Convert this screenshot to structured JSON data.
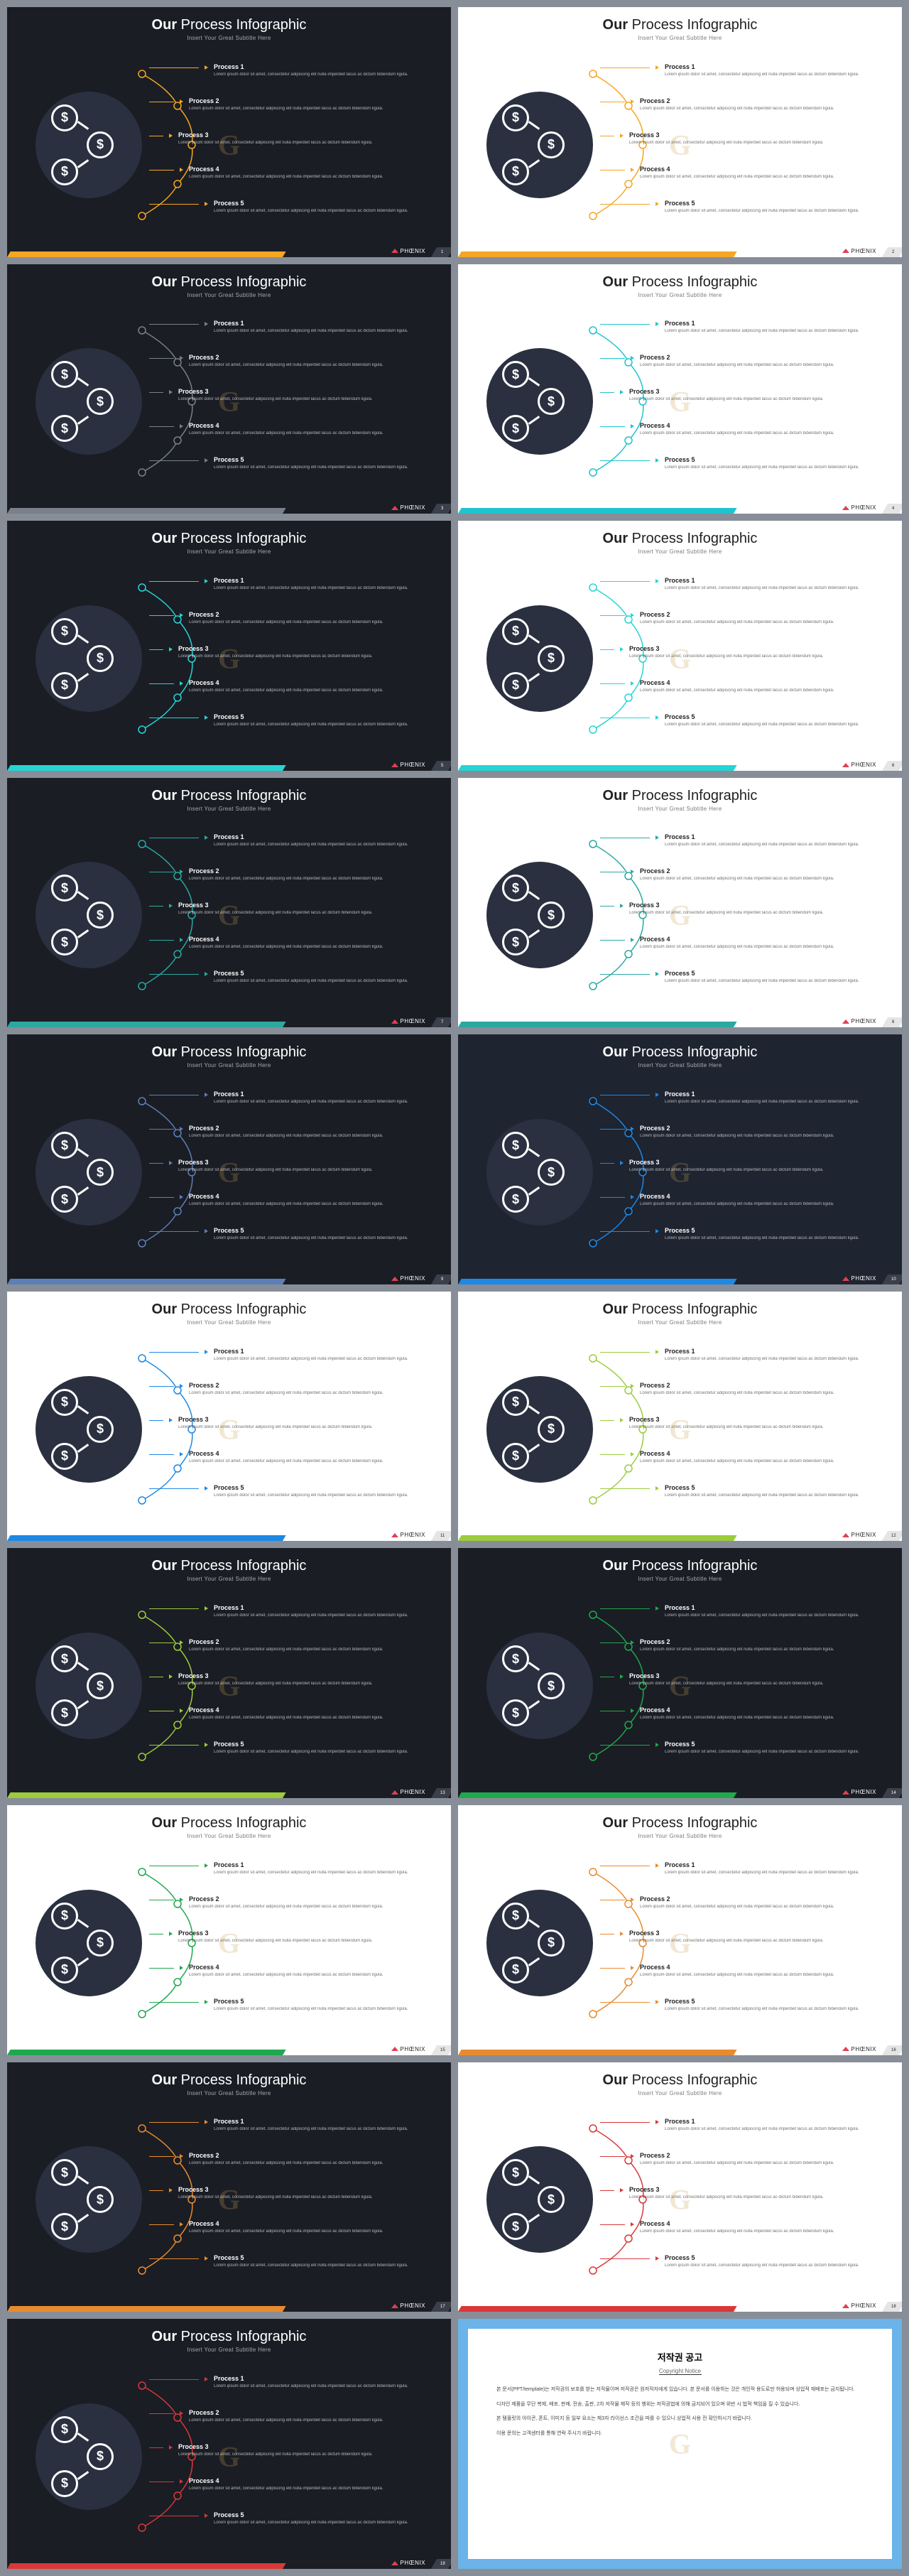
{
  "title_bold": "Our",
  "title_rest": " Process Infographic",
  "subtitle": "Insert Your Great Subtitle Here",
  "brand": "PHŒNIX",
  "processes": [
    {
      "title": "Process 1",
      "desc": "Lorem ipsum dolor sit amet, consectetur adipiscing elit nulla imperdiet lacus ac dictum bibendum ligula."
    },
    {
      "title": "Process 2",
      "desc": "Lorem ipsum dolor sit amet, consectetur adipiscing elit nulla imperdiet lacus ac dictum bibendum ligula."
    },
    {
      "title": "Process 3",
      "desc": "Lorem ipsum dolor sit amet, consectetur adipiscing elit nulla imperdiet lacus ac dictum bibendum ligula."
    },
    {
      "title": "Process 4",
      "desc": "Lorem ipsum dolor sit amet, consectetur adipiscing elit nulla imperdiet lacus ac dictum bibendum ligula."
    },
    {
      "title": "Process 5",
      "desc": "Lorem ipsum dolor sit amet, consectetur adipiscing elit nulla imperdiet lacus ac dictum bibendum ligula."
    }
  ],
  "row_tops": [
    0,
    48,
    96,
    144,
    192
  ],
  "line_widths": [
    70,
    35,
    20,
    35,
    70
  ],
  "slides": [
    {
      "theme": "dark",
      "accent": "#f5a623",
      "brand_tri": "#e04050"
    },
    {
      "theme": "light",
      "accent": "#f5a623",
      "brand_tri": "#e04050"
    },
    {
      "theme": "dark",
      "accent": "#7a7f8a",
      "brand_tri": "#e04050"
    },
    {
      "theme": "light",
      "accent": "#1fc4cf",
      "brand_tri": "#e04050"
    },
    {
      "theme": "dark",
      "accent": "#26d4d4",
      "brand_tri": "#e04050"
    },
    {
      "theme": "light",
      "accent": "#26d4d4",
      "brand_tri": "#e04050"
    },
    {
      "theme": "dark",
      "accent": "#2ba8a0",
      "brand_tri": "#e04050"
    },
    {
      "theme": "light",
      "accent": "#2ba8a0",
      "brand_tri": "#e04050"
    },
    {
      "theme": "dark",
      "accent": "#5d7fb8",
      "brand_tri": "#e04050"
    },
    {
      "theme": "dark2",
      "accent": "#1e88e5",
      "brand_tri": "#e04050"
    },
    {
      "theme": "light",
      "accent": "#1e88e5",
      "brand_tri": "#e04050"
    },
    {
      "theme": "light",
      "accent": "#9ccc3c",
      "brand_tri": "#e04050"
    },
    {
      "theme": "dark",
      "accent": "#9ccc3c",
      "brand_tri": "#e04050"
    },
    {
      "theme": "dark",
      "accent": "#1fa84e",
      "brand_tri": "#e04050"
    },
    {
      "theme": "light",
      "accent": "#1fa84e",
      "brand_tri": "#e04050"
    },
    {
      "theme": "light",
      "accent": "#e88b2e",
      "brand_tri": "#e04050"
    },
    {
      "theme": "dark",
      "accent": "#e88b2e",
      "brand_tri": "#e04050"
    },
    {
      "theme": "light",
      "accent": "#d93838",
      "brand_tri": "#e04050"
    },
    {
      "theme": "dark",
      "accent": "#d93838",
      "brand_tri": "#e04050"
    }
  ],
  "notice": {
    "title": "저작권 공고",
    "sub": "Copyright Notice",
    "p1": "본 문서(PPT/template)는 저작권의 보호를 받는 저작물이며 저작권은 원저작자에게 있습니다. 본 문서를 이용하는 것은 개인적 용도로만 허용되며 상업적 재배포는 금지됩니다.",
    "p2": "디자인 제품을 무단 복제, 배포, 판매, 전송, 출판, 2차 저작물 제작 등의 행위는 저작권법에 의해 금지되어 있으며 위반 시 법적 책임을 질 수 있습니다.",
    "p3": "본 템플릿의 아이콘, 폰트, 이미지 등 일부 요소는 제3자 라이선스 조건을 따를 수 있으니 상업적 사용 전 확인하시기 바랍니다.",
    "p4": "이용 문의는 고객센터를 통해 연락 주시기 바랍니다."
  },
  "wm": "G"
}
